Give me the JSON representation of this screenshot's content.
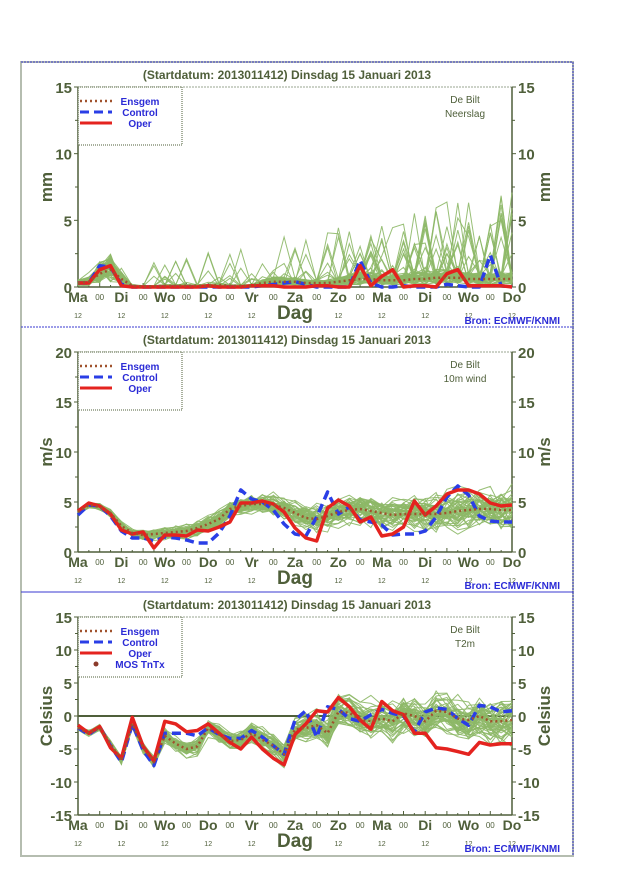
{
  "source_label": "Bron: ECMWF/KNMI",
  "colors": {
    "axis": "#4f5f3a",
    "text": "#4f5f3a",
    "legend_text": "#2b2bd6",
    "ensemble": "#8db867",
    "ensemble_dark": "#556b2f",
    "ensgem": "#a0522d",
    "control": "#2a3ee6",
    "oper": "#e4231f",
    "mos": "#8b3a2a",
    "frame": "#3a3ad0",
    "outer_border": "#b5bdb0"
  },
  "legend_labels": {
    "ensgem": "Ensgem",
    "control": "Control",
    "oper": "Oper",
    "mos": "MOS TnTx"
  },
  "chart_data": [
    {
      "type": "line",
      "title": "(Startdatum: 2013011412)   Dinsdag   15 Januari   2013",
      "location": "De Bilt",
      "variable": "Neerslag",
      "xlabel": "Dag",
      "ylabel": "mm",
      "ylim": [
        0,
        15
      ],
      "yticks": [
        0,
        5,
        10,
        15
      ],
      "legend_position": "top-left",
      "x_day_labels": [
        "Ma",
        "Di",
        "Wo",
        "Do",
        "Vr",
        "Za",
        "Zo",
        "Ma",
        "Di",
        "Wo",
        "Do"
      ],
      "x_mid_label": "00",
      "x_sub_label": "12",
      "step_hours": 6,
      "x": [
        0,
        1,
        2,
        3,
        4,
        5,
        6,
        7,
        8,
        9,
        10,
        11,
        12,
        13,
        14,
        15,
        16,
        17,
        18,
        19,
        20,
        21,
        22,
        23,
        24,
        25,
        26,
        27,
        28,
        29,
        30,
        31,
        32,
        33,
        34,
        35,
        36,
        37,
        38,
        39,
        40
      ],
      "series": [
        {
          "name": "Ensgem",
          "values": [
            0.3,
            0.4,
            1.0,
            1.3,
            0.6,
            0.1,
            0.05,
            0.05,
            0.1,
            0.1,
            0.1,
            0.1,
            0.1,
            0.15,
            0.1,
            0.1,
            0.1,
            0.3,
            0.4,
            0.4,
            0.4,
            0.3,
            0.3,
            0.3,
            0.4,
            0.5,
            0.6,
            0.6,
            0.5,
            0.5,
            0.5,
            0.6,
            0.6,
            0.7,
            0.7,
            0.7,
            0.6,
            0.6,
            0.6,
            0.6,
            0.6
          ]
        },
        {
          "name": "Control",
          "values": [
            0.3,
            0.3,
            1.6,
            1.5,
            0.2,
            0.0,
            0.0,
            0.0,
            0.0,
            0.0,
            0.0,
            0.0,
            0.0,
            0.0,
            0.0,
            0.0,
            0.0,
            0.1,
            0.2,
            0.3,
            0.4,
            0.2,
            0.0,
            0.0,
            0.0,
            0.0,
            2.0,
            0.3,
            0.0,
            0.0,
            0.1,
            0.0,
            0.0,
            0.0,
            0.2,
            0.1,
            0.0,
            0.0,
            2.4,
            0.1,
            0.0
          ]
        },
        {
          "name": "Oper",
          "values": [
            0.3,
            0.3,
            1.3,
            1.6,
            0.1,
            0.0,
            0.0,
            0.0,
            0.0,
            0.0,
            0.0,
            0.0,
            0.1,
            0.0,
            0.0,
            0.0,
            0.1,
            0.1,
            0.1,
            0.0,
            0.0,
            0.0,
            0.1,
            0.1,
            0.0,
            0.0,
            1.6,
            0.1,
            0.8,
            1.3,
            0.0,
            0.1,
            0.1,
            0.0,
            1.0,
            1.3,
            0.1,
            0.1,
            0.1,
            0.1,
            0.0
          ]
        }
      ],
      "ensemble_members": 50,
      "ensemble_max_approx": 7.6
    },
    {
      "type": "line",
      "title": "(Startdatum: 2013011412)   Dinsdag   15 Januari   2013",
      "location": "De Bilt",
      "variable": "10m wind",
      "xlabel": "Dag",
      "ylabel": "m/s",
      "ylim": [
        0,
        20
      ],
      "yticks": [
        0,
        5,
        10,
        15,
        20
      ],
      "legend_position": "top-left",
      "x_day_labels": [
        "Ma",
        "Di",
        "Wo",
        "Do",
        "Vr",
        "Za",
        "Zo",
        "Ma",
        "Di",
        "Wo",
        "Do"
      ],
      "x_mid_label": "00",
      "x_sub_label": "12",
      "step_hours": 6,
      "x": [
        0,
        1,
        2,
        3,
        4,
        5,
        6,
        7,
        8,
        9,
        10,
        11,
        12,
        13,
        14,
        15,
        16,
        17,
        18,
        19,
        20,
        21,
        22,
        23,
        24,
        25,
        26,
        27,
        28,
        29,
        30,
        31,
        32,
        33,
        34,
        35,
        36,
        37,
        38,
        39,
        40
      ],
      "series": [
        {
          "name": "Ensgem",
          "values": [
            4.0,
            4.7,
            4.5,
            3.9,
            2.6,
            1.9,
            1.7,
            1.8,
            1.9,
            2.0,
            2.1,
            2.4,
            2.8,
            3.3,
            4.3,
            4.6,
            4.8,
            4.8,
            4.7,
            4.4,
            3.9,
            3.4,
            3.3,
            3.6,
            4.0,
            4.2,
            4.3,
            4.1,
            3.9,
            3.7,
            3.8,
            3.8,
            3.8,
            3.8,
            3.9,
            4.1,
            4.2,
            4.3,
            4.3,
            4.2,
            4.2
          ]
        },
        {
          "name": "Control",
          "values": [
            3.7,
            4.7,
            4.6,
            3.6,
            2.1,
            1.4,
            1.4,
            1.1,
            1.5,
            1.4,
            1.2,
            0.9,
            0.9,
            1.9,
            3.6,
            6.2,
            5.3,
            5.0,
            4.2,
            2.8,
            1.8,
            1.6,
            3.5,
            6.0,
            3.8,
            4.5,
            3.2,
            3.0,
            2.7,
            1.7,
            1.8,
            1.8,
            2.1,
            3.5,
            5.5,
            6.6,
            5.7,
            3.6,
            3.1,
            3.0,
            3.0
          ]
        },
        {
          "name": "Oper",
          "values": [
            4.1,
            4.9,
            4.6,
            3.8,
            2.2,
            1.8,
            2.0,
            0.4,
            1.7,
            1.7,
            1.6,
            2.2,
            2.1,
            2.5,
            3.0,
            4.9,
            4.9,
            5.1,
            4.8,
            4.0,
            2.4,
            1.4,
            1.1,
            4.4,
            5.2,
            4.6,
            3.0,
            3.5,
            1.6,
            1.8,
            2.5,
            5.1,
            3.7,
            4.6,
            5.8,
            6.2,
            6.2,
            5.8,
            4.9,
            4.6,
            4.7
          ]
        }
      ],
      "ensemble_members": 50,
      "ensemble_max_approx": 10.2
    },
    {
      "type": "line",
      "title": "(Startdatum: 2013011412)   Dinsdag   15 Januari   2013",
      "location": "De Bilt",
      "variable": "T2m",
      "xlabel": "Dag",
      "ylabel": "Celsius",
      "ylim": [
        -15,
        15
      ],
      "yticks": [
        -15,
        -10,
        -5,
        0,
        5,
        10,
        15
      ],
      "legend_position": "top-left",
      "x_day_labels": [
        "Ma",
        "Di",
        "Wo",
        "Do",
        "Vr",
        "Za",
        "Zo",
        "Ma",
        "Di",
        "Wo",
        "Do"
      ],
      "x_mid_label": "00",
      "x_sub_label": "12",
      "step_hours": 6,
      "x": [
        0,
        1,
        2,
        3,
        4,
        5,
        6,
        7,
        8,
        9,
        10,
        11,
        12,
        13,
        14,
        15,
        16,
        17,
        18,
        19,
        20,
        21,
        22,
        23,
        24,
        25,
        26,
        27,
        28,
        29,
        30,
        31,
        32,
        33,
        34,
        35,
        36,
        37,
        38,
        39,
        40
      ],
      "series": [
        {
          "name": "Ensgem",
          "values": [
            -1.8,
            -2.6,
            -1.8,
            -4.2,
            -6.8,
            -1.2,
            -4.8,
            -7.0,
            -3.0,
            -4.2,
            -5.0,
            -4.6,
            -1.8,
            -2.8,
            -3.8,
            -3.6,
            -2.6,
            -3.6,
            -4.5,
            -5.8,
            -2.0,
            -1.8,
            -1.4,
            -2.6,
            0.6,
            0.5,
            -0.6,
            -0.8,
            -0.4,
            -0.8,
            0.4,
            0.0,
            -0.8,
            0.8,
            0.6,
            -0.4,
            -0.6,
            0.0,
            -0.8,
            -0.8,
            -0.6
          ]
        },
        {
          "name": "Control",
          "values": [
            -1.8,
            -2.8,
            -1.6,
            -4.5,
            -7.0,
            -1.2,
            -5.2,
            -7.5,
            -2.6,
            -2.6,
            -2.6,
            -3.0,
            -1.8,
            -2.8,
            -3.4,
            -3.4,
            -2.2,
            -3.2,
            -4.5,
            -5.8,
            -0.6,
            0.8,
            -3.2,
            1.4,
            1.0,
            -0.4,
            -0.8,
            0.2,
            1.0,
            0.4,
            0.0,
            -2.4,
            0.6,
            1.2,
            1.0,
            -0.4,
            -1.4,
            1.6,
            1.4,
            0.6,
            0.8
          ]
        },
        {
          "name": "Oper",
          "values": [
            -1.4,
            -2.6,
            -1.6,
            -4.8,
            -6.4,
            -0.2,
            -4.6,
            -6.8,
            -0.8,
            -1.2,
            -2.4,
            -2.2,
            -1.2,
            -2.6,
            -4.0,
            -5.0,
            -3.2,
            -5.0,
            -6.4,
            -7.4,
            -2.8,
            -1.2,
            0.8,
            0.6,
            2.8,
            1.4,
            -0.6,
            -2.0,
            2.2,
            0.8,
            0.2,
            -2.6,
            -2.6,
            -4.8,
            -5.0,
            -5.4,
            -5.8,
            -4.0,
            -4.4,
            -4.2,
            -4.2
          ]
        }
      ],
      "ensemble_members": 50,
      "ensemble_range_approx": [
        -11.0,
        7.8
      ]
    }
  ]
}
